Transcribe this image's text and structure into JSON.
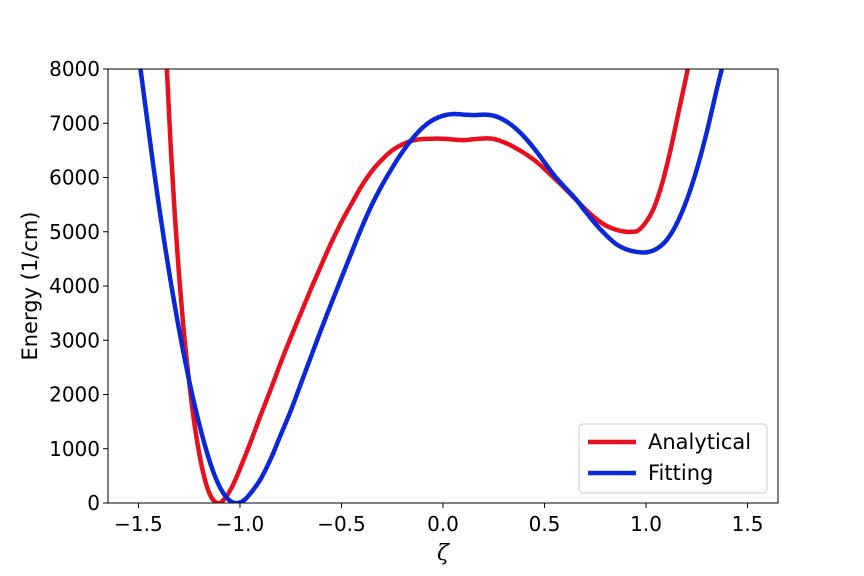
{
  "chart_data": {
    "type": "line",
    "title": "",
    "xlabel": "ζ",
    "ylabel": "Energy (1/cm)",
    "xlim": [
      -1.65,
      1.65
    ],
    "ylim": [
      0,
      8000
    ],
    "xticks": [
      -1.5,
      -1.0,
      -0.5,
      0.0,
      0.5,
      1.0,
      1.5
    ],
    "xtick_labels": [
      "−1.5",
      "−1.0",
      "−0.5",
      "0.0",
      "0.5",
      "1.0",
      "1.5"
    ],
    "yticks": [
      0,
      1000,
      2000,
      3000,
      4000,
      5000,
      6000,
      7000,
      8000
    ],
    "ytick_labels": [
      "0",
      "1000",
      "2000",
      "3000",
      "4000",
      "5000",
      "6000",
      "7000",
      "8000"
    ],
    "grid": false,
    "legend_position": "lower-right",
    "series": [
      {
        "name": "Analytical",
        "color": "#e8101f",
        "x": [
          -1.36,
          -1.34,
          -1.32,
          -1.3,
          -1.28,
          -1.26,
          -1.24,
          -1.22,
          -1.2,
          -1.18,
          -1.16,
          -1.14,
          -1.12,
          -1.1,
          -1.08,
          -1.06,
          -1.04,
          -1.02,
          -1.0,
          -0.95,
          -0.9,
          -0.85,
          -0.8,
          -0.75,
          -0.7,
          -0.65,
          -0.6,
          -0.55,
          -0.5,
          -0.45,
          -0.4,
          -0.35,
          -0.3,
          -0.25,
          -0.2,
          -0.15,
          -0.1,
          -0.05,
          0.0,
          0.05,
          0.1,
          0.15,
          0.2,
          0.25,
          0.3,
          0.35,
          0.4,
          0.45,
          0.5,
          0.55,
          0.6,
          0.65,
          0.7,
          0.75,
          0.8,
          0.85,
          0.9,
          0.93,
          0.96,
          1.0,
          1.04,
          1.08,
          1.12,
          1.16,
          1.2,
          1.22
        ],
        "y": [
          8000,
          6500,
          5250,
          4200,
          3300,
          2550,
          1900,
          1350,
          900,
          540,
          270,
          100,
          15,
          0,
          60,
          160,
          290,
          450,
          630,
          1100,
          1600,
          2080,
          2580,
          3050,
          3500,
          3950,
          4380,
          4800,
          5180,
          5520,
          5850,
          6120,
          6330,
          6500,
          6610,
          6680,
          6710,
          6715,
          6715,
          6700,
          6690,
          6705,
          6720,
          6710,
          6650,
          6560,
          6450,
          6320,
          6160,
          5980,
          5800,
          5610,
          5420,
          5250,
          5120,
          5040,
          5000,
          5000,
          5020,
          5180,
          5450,
          5900,
          6500,
          7200,
          7900,
          8300
        ]
      },
      {
        "name": "Fitting",
        "color": "#0a28d8",
        "x": [
          -1.49,
          -1.46,
          -1.43,
          -1.4,
          -1.37,
          -1.34,
          -1.31,
          -1.28,
          -1.25,
          -1.22,
          -1.19,
          -1.16,
          -1.13,
          -1.1,
          -1.07,
          -1.04,
          -1.01,
          -0.98,
          -0.95,
          -0.9,
          -0.85,
          -0.8,
          -0.75,
          -0.7,
          -0.65,
          -0.6,
          -0.55,
          -0.5,
          -0.45,
          -0.4,
          -0.35,
          -0.3,
          -0.25,
          -0.2,
          -0.15,
          -0.1,
          -0.05,
          0.0,
          0.05,
          0.1,
          0.15,
          0.2,
          0.25,
          0.3,
          0.35,
          0.4,
          0.45,
          0.5,
          0.55,
          0.6,
          0.65,
          0.7,
          0.75,
          0.8,
          0.85,
          0.9,
          0.95,
          1.0,
          1.05,
          1.1,
          1.15,
          1.2,
          1.25,
          1.3,
          1.35,
          1.38
        ],
        "y": [
          8000,
          7150,
          6300,
          5500,
          4750,
          4050,
          3400,
          2800,
          2250,
          1750,
          1300,
          900,
          560,
          300,
          120,
          20,
          0,
          50,
          170,
          430,
          800,
          1250,
          1700,
          2200,
          2700,
          3200,
          3680,
          4150,
          4620,
          5080,
          5500,
          5860,
          6180,
          6470,
          6720,
          6920,
          7060,
          7140,
          7170,
          7160,
          7150,
          7160,
          7140,
          7060,
          6930,
          6750,
          6530,
          6280,
          6030,
          5820,
          5620,
          5380,
          5150,
          4950,
          4780,
          4680,
          4630,
          4620,
          4680,
          4840,
          5140,
          5580,
          6150,
          6850,
          7650,
          8100
        ]
      }
    ]
  }
}
